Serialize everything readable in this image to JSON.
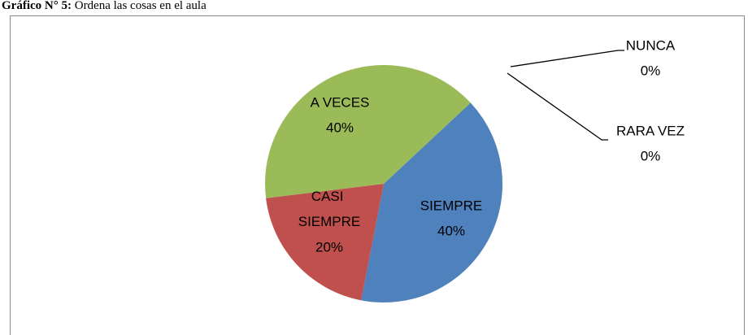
{
  "chart_data": {
    "type": "pie",
    "title": "Gráfico N° 5:",
    "subtitle": "Ordena las cosas en el aula",
    "categories": [
      "SIEMPRE",
      "CASI SIEMPRE",
      "A VECES",
      "NUNCA",
      "RARA VEZ"
    ],
    "values": [
      40,
      20,
      40,
      0,
      0
    ],
    "value_labels": [
      "40%",
      "20%",
      "40%",
      "0%",
      "0%"
    ],
    "colors": [
      "#4f81bd",
      "#c0504d",
      "#9bbb59",
      "#8064a2",
      "#4bacc6"
    ]
  }
}
